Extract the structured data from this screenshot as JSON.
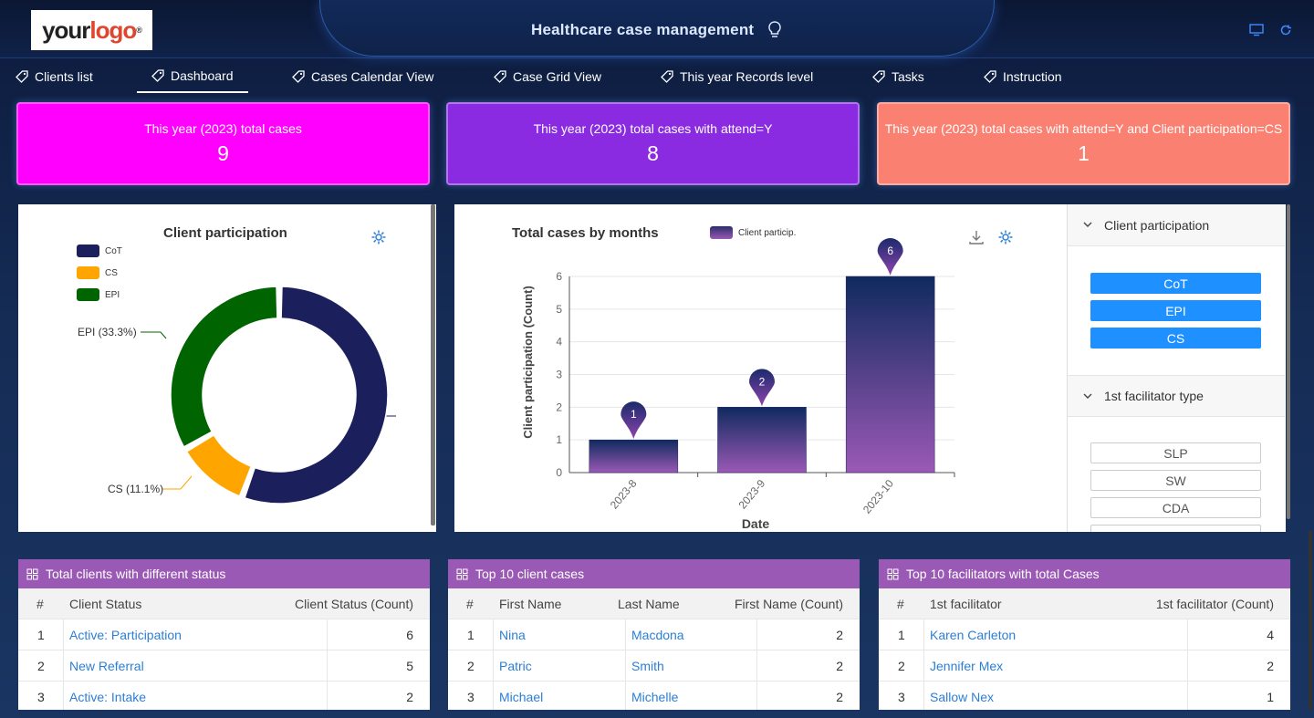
{
  "header": {
    "logo_your": "your",
    "logo_logo": "logo",
    "logo_mark": "®",
    "title": "Healthcare case management"
  },
  "tabs": [
    {
      "label": "Clients list"
    },
    {
      "label": "Dashboard",
      "active": true
    },
    {
      "label": "Cases Calendar View"
    },
    {
      "label": "Case Grid View"
    },
    {
      "label": "This year Records level"
    },
    {
      "label": "Tasks"
    },
    {
      "label": "Instruction"
    }
  ],
  "kpis": [
    {
      "label": "This year (2023) total cases",
      "value": "9",
      "color": "#ff00ff"
    },
    {
      "label": "This year (2023) total cases with attend=Y",
      "value": "8",
      "color": "#8a2be2"
    },
    {
      "label": "This year (2023) total cases with attend=Y and Client participation=CS",
      "value": "1",
      "color": "#fa8072"
    }
  ],
  "donut": {
    "title": "Client participation",
    "legend": [
      "CoT",
      "CS",
      "EPI"
    ],
    "label_epi": "EPI (33.3%)",
    "label_cs": "CS (11.1%)"
  },
  "bar": {
    "title": "Total cases by months",
    "legend": "Client particip.",
    "xlabel": "Date",
    "ylabel": "Client participation (Count)"
  },
  "chart_data": [
    {
      "type": "pie",
      "title": "Client participation",
      "categories": [
        "CoT",
        "CS",
        "EPI"
      ],
      "values": [
        5,
        1,
        3
      ],
      "percent_labels": [
        "",
        "11.1%",
        "33.3%"
      ],
      "colors": [
        "#1b1f5c",
        "#ffa500",
        "#006400"
      ],
      "legend": "top-left"
    },
    {
      "type": "bar",
      "title": "Total cases by months",
      "categories": [
        "2023-8",
        "2023-9",
        "2023-10"
      ],
      "series": [
        {
          "name": "Client particip.",
          "values": [
            1,
            2,
            6
          ]
        }
      ],
      "xlabel": "Date",
      "ylabel": "Client participation (Count)",
      "ylim": [
        0,
        6
      ],
      "yticks": [
        "0",
        "1",
        "2",
        "3",
        "4",
        "5",
        "6"
      ],
      "grid": true,
      "legend": "top"
    }
  ],
  "filters": {
    "group1_title": "Client participation",
    "group1_items": [
      "CoT",
      "EPI",
      "CS"
    ],
    "group2_title": "1st facilitator type",
    "group2_items": [
      "SLP",
      "SW",
      "CDA"
    ]
  },
  "tables": {
    "status": {
      "title": "Total clients with different status",
      "headers": [
        "#",
        "Client Status",
        "Client Status (Count)"
      ],
      "rows": [
        [
          "1",
          "Active: Participation",
          "6"
        ],
        [
          "2",
          "New Referral",
          "5"
        ],
        [
          "3",
          "Active: Intake",
          "2"
        ]
      ]
    },
    "clients": {
      "title": "Top 10 client cases",
      "headers": [
        "#",
        "First Name",
        "Last Name",
        "First Name (Count)"
      ],
      "rows": [
        [
          "1",
          "Nina",
          "Macdona",
          "2"
        ],
        [
          "2",
          "Patric",
          "Smith",
          "2"
        ],
        [
          "3",
          "Michael",
          "Michelle",
          "2"
        ]
      ]
    },
    "facilitators": {
      "title": "Top 10 facilitators with total Cases",
      "headers": [
        "#",
        "1st facilitator",
        "1st facilitator (Count)"
      ],
      "rows": [
        [
          "1",
          "Karen Carleton",
          "4"
        ],
        [
          "2",
          "Jennifer Mex",
          "2"
        ],
        [
          "3",
          "Sallow Nex",
          "1"
        ]
      ]
    }
  }
}
